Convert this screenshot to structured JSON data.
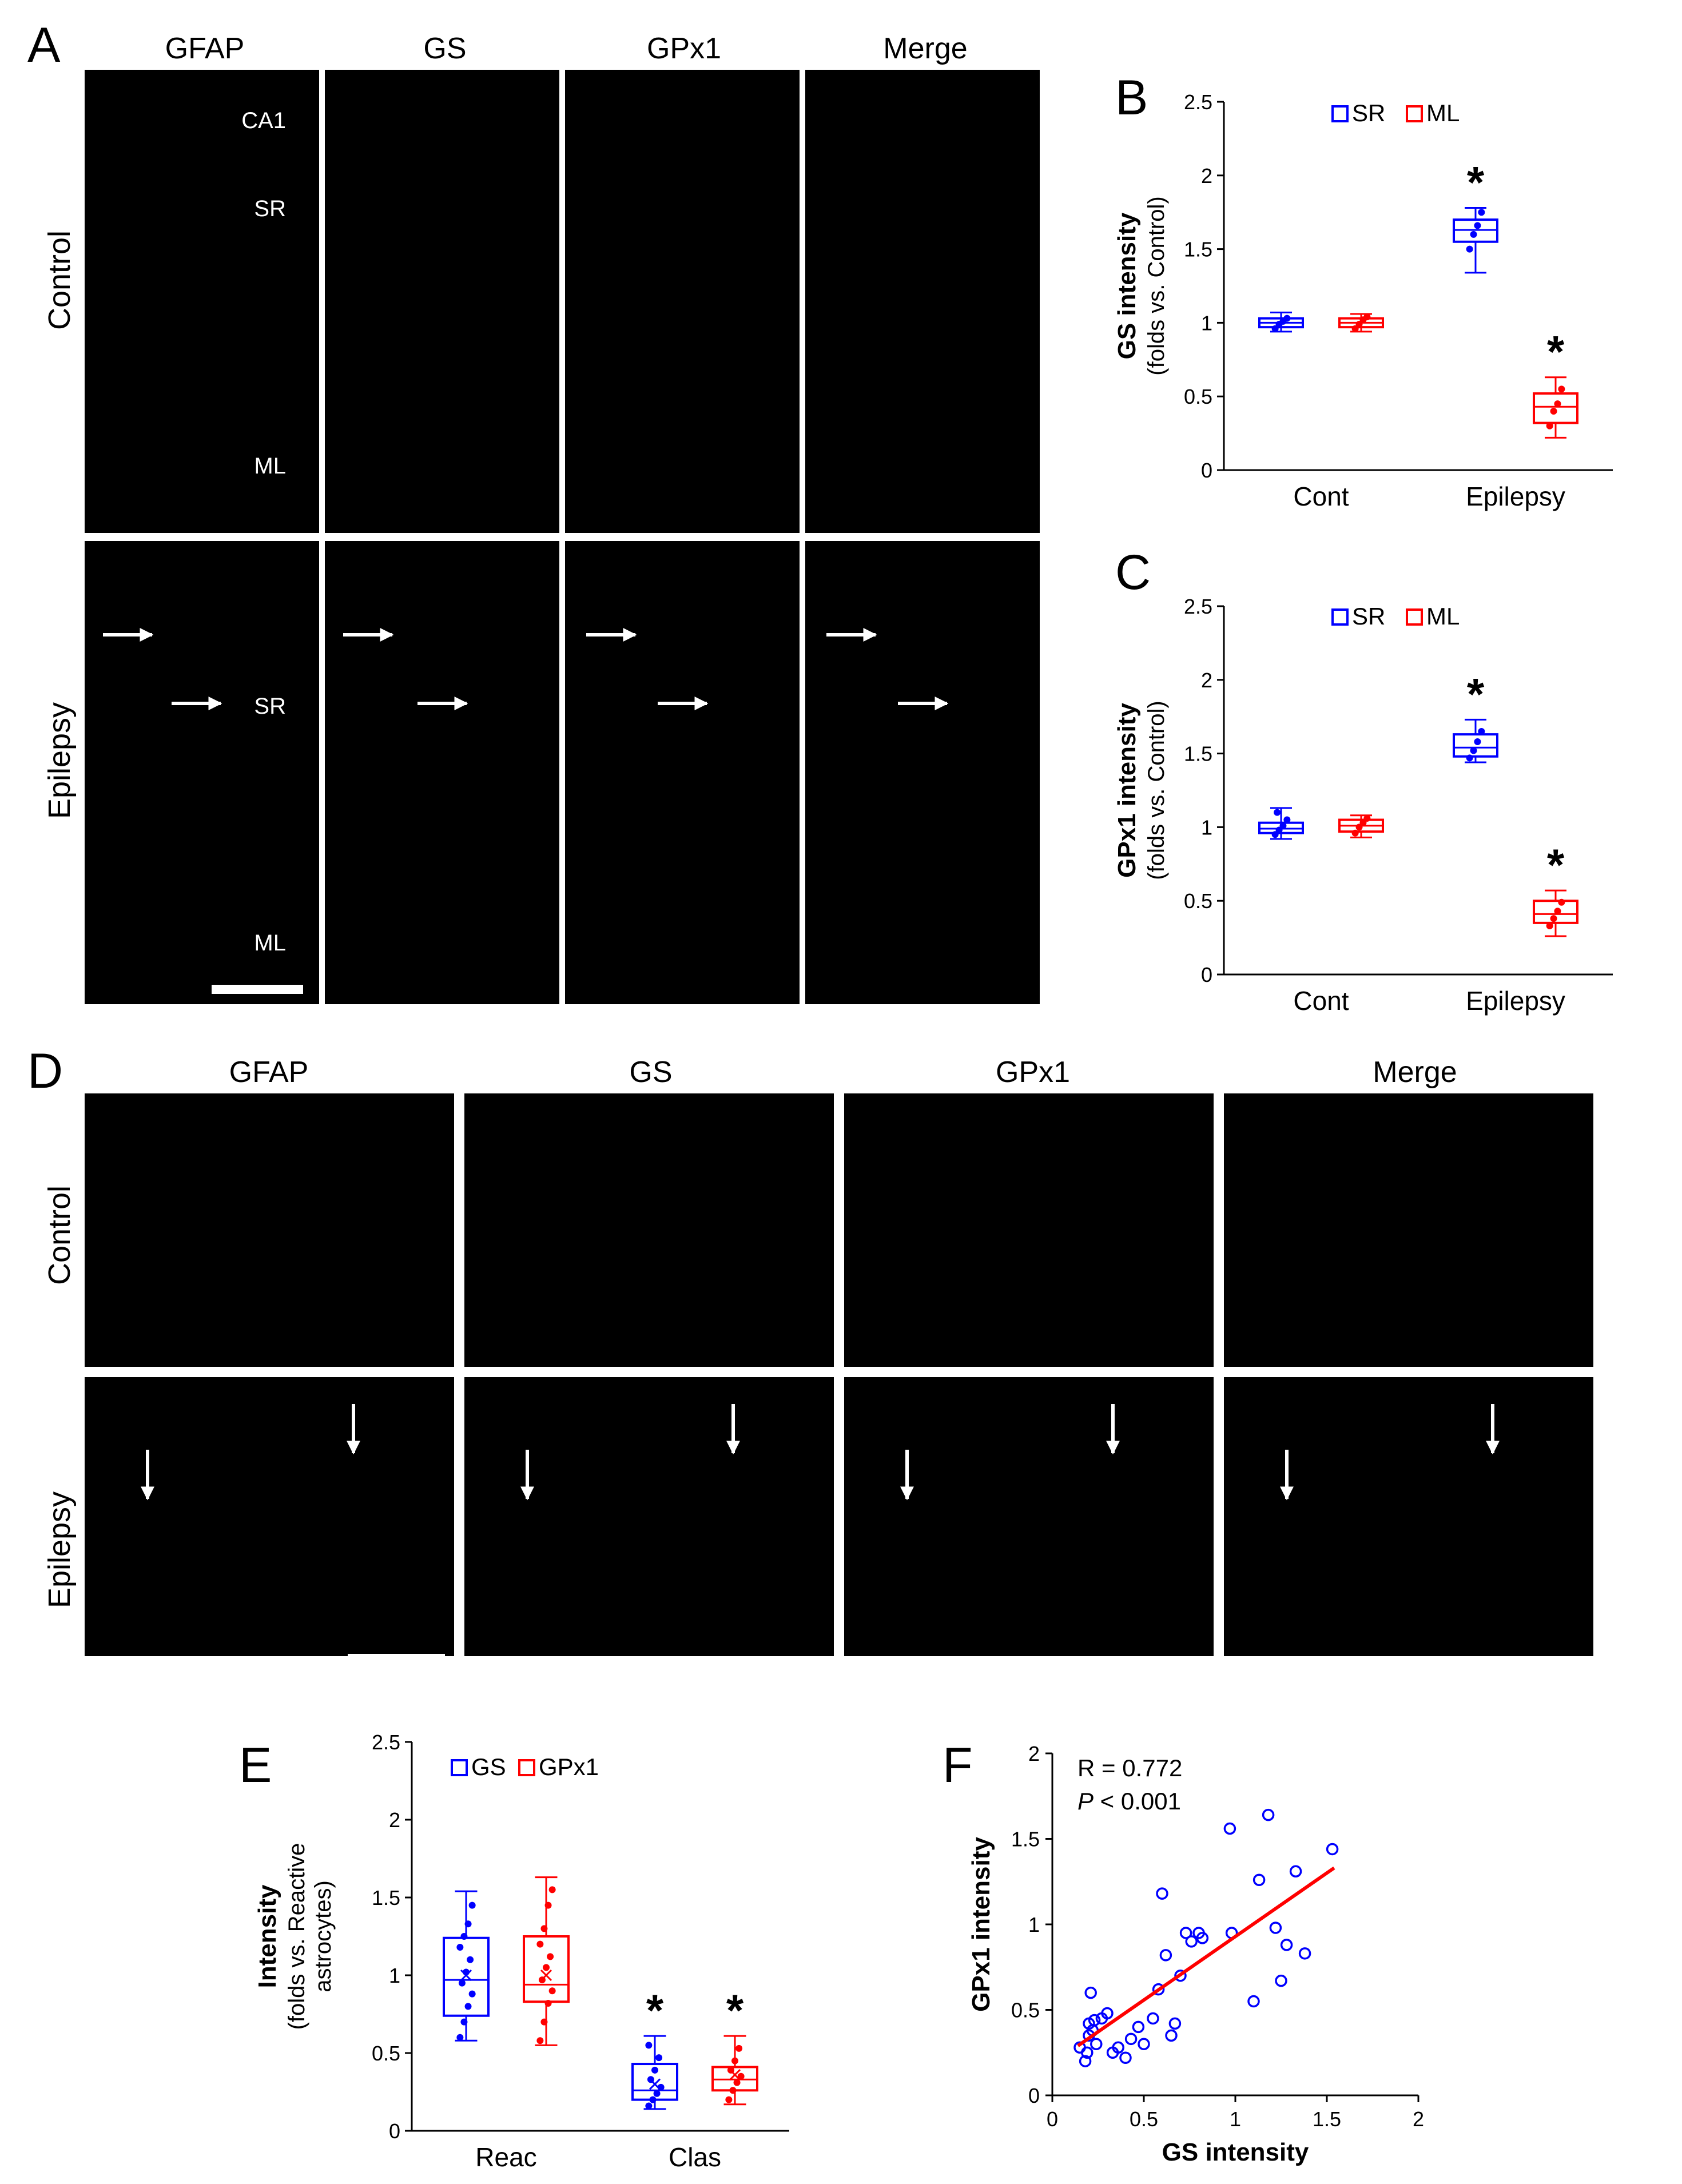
{
  "panels": {
    "A": {
      "letter": "A",
      "columns": [
        "GFAP",
        "GS",
        "GPx1",
        "Merge"
      ],
      "rows": [
        "Control",
        "Epilepsy"
      ],
      "control_labels": [
        "CA1",
        "SR",
        "ML"
      ],
      "epilepsy_labels": [
        "SR",
        "ML"
      ]
    },
    "D": {
      "letter": "D",
      "columns": [
        "GFAP",
        "GS",
        "GPx1",
        "Merge"
      ],
      "rows": [
        "Control",
        "Epilepsy"
      ]
    },
    "B": {
      "letter": "B"
    },
    "C": {
      "letter": "C"
    },
    "E": {
      "letter": "E"
    },
    "F": {
      "letter": "F"
    }
  },
  "colors": {
    "gfap": "#1a1aff",
    "gs": "#22cc22",
    "gpx1": "#ee1111",
    "merge": "#b8b8ff",
    "series_blue": "#0000ff",
    "series_red": "#ff0000"
  },
  "chart_data": [
    {
      "id": "B",
      "type": "box",
      "categories": [
        "Cont",
        "Epilepsy"
      ],
      "ylabel": "GS intensity",
      "ylabel_sub": "(folds vs. Control)",
      "ylim": [
        0,
        2.5
      ],
      "yticks": [
        "0",
        "0.5",
        "1",
        "1.5",
        "2",
        "2.5"
      ],
      "legend": [
        "SR",
        "ML"
      ],
      "series": [
        {
          "name": "SR",
          "boxes": [
            {
              "min": 0.94,
              "q1": 0.97,
              "median": 1.0,
              "q3": 1.03,
              "max": 1.07,
              "points": [
                0.96,
                0.99,
                1.01,
                1.03
              ]
            },
            {
              "min": 1.34,
              "q1": 1.55,
              "median": 1.63,
              "q3": 1.7,
              "max": 1.78,
              "points": [
                1.5,
                1.6,
                1.66,
                1.75
              ]
            }
          ]
        },
        {
          "name": "ML",
          "boxes": [
            {
              "min": 0.94,
              "q1": 0.97,
              "median": 1.0,
              "q3": 1.03,
              "max": 1.06,
              "points": [
                0.96,
                0.99,
                1.02,
                1.04
              ]
            },
            {
              "min": 0.22,
              "q1": 0.32,
              "median": 0.43,
              "q3": 0.52,
              "max": 0.63,
              "points": [
                0.3,
                0.4,
                0.45,
                0.55
              ]
            }
          ]
        }
      ],
      "significance": [
        "*",
        "*"
      ]
    },
    {
      "id": "C",
      "type": "box",
      "categories": [
        "Cont",
        "Epilepsy"
      ],
      "ylabel": "GPx1 intensity",
      "ylabel_sub": "(folds vs. Control)",
      "ylim": [
        0,
        2.5
      ],
      "yticks": [
        "0",
        "0.5",
        "1",
        "1.5",
        "2",
        "2.5"
      ],
      "legend": [
        "SR",
        "ML"
      ],
      "series": [
        {
          "name": "SR",
          "boxes": [
            {
              "min": 0.92,
              "q1": 0.96,
              "median": 0.99,
              "q3": 1.03,
              "max": 1.13,
              "points": [
                0.95,
                0.98,
                1.01,
                1.05,
                1.1
              ]
            },
            {
              "min": 1.44,
              "q1": 1.48,
              "median": 1.54,
              "q3": 1.63,
              "max": 1.73,
              "points": [
                1.47,
                1.52,
                1.58,
                1.65
              ]
            }
          ]
        },
        {
          "name": "ML",
          "boxes": [
            {
              "min": 0.93,
              "q1": 0.97,
              "median": 1.01,
              "q3": 1.05,
              "max": 1.08,
              "points": [
                0.96,
                1.0,
                1.03,
                1.06
              ]
            },
            {
              "min": 0.26,
              "q1": 0.35,
              "median": 0.41,
              "q3": 0.5,
              "max": 0.57,
              "points": [
                0.33,
                0.38,
                0.43,
                0.49
              ]
            }
          ]
        }
      ],
      "significance": [
        "*",
        "*"
      ]
    },
    {
      "id": "E",
      "type": "box",
      "categories": [
        "Reac",
        "Clas"
      ],
      "ylabel": "Intensity",
      "ylabel_sub": "(folds vs. Reactive",
      "ylabel_sub2": "astrocytes)",
      "ylim": [
        0,
        2.5
      ],
      "yticks": [
        "0",
        "0.5",
        "1",
        "1.5",
        "2",
        "2.5"
      ],
      "legend": [
        "GS",
        "GPx1"
      ],
      "series": [
        {
          "name": "GS",
          "boxes": [
            {
              "min": 0.58,
              "q1": 0.74,
              "median": 0.97,
              "q3": 1.24,
              "max": 1.54,
              "mean": 1.0,
              "points": [
                0.6,
                0.7,
                0.8,
                0.88,
                0.95,
                1.02,
                1.1,
                1.18,
                1.25,
                1.33,
                1.45
              ]
            },
            {
              "min": 0.14,
              "q1": 0.2,
              "median": 0.26,
              "q3": 0.43,
              "max": 0.61,
              "mean": 0.3,
              "points": [
                0.16,
                0.2,
                0.24,
                0.28,
                0.33,
                0.39,
                0.47,
                0.55
              ]
            }
          ]
        },
        {
          "name": "GPx1",
          "boxes": [
            {
              "min": 0.55,
              "q1": 0.83,
              "median": 0.94,
              "q3": 1.25,
              "max": 1.63,
              "mean": 1.0,
              "points": [
                0.58,
                0.7,
                0.82,
                0.9,
                0.97,
                1.05,
                1.12,
                1.2,
                1.3,
                1.45,
                1.55
              ]
            },
            {
              "min": 0.17,
              "q1": 0.26,
              "median": 0.33,
              "q3": 0.41,
              "max": 0.61,
              "mean": 0.36,
              "points": [
                0.2,
                0.26,
                0.31,
                0.35,
                0.39,
                0.45,
                0.53
              ]
            }
          ]
        }
      ],
      "significance": [
        "*",
        "*"
      ]
    },
    {
      "id": "F",
      "type": "scatter",
      "xlabel": "GS intensity",
      "ylabel": "GPx1 intensity",
      "xlim": [
        0,
        2
      ],
      "ylim": [
        0,
        2
      ],
      "xticks": [
        "0",
        "0.5",
        "1",
        "1.5",
        "2"
      ],
      "yticks": [
        "0",
        "0.5",
        "1",
        "1.5",
        "2"
      ],
      "annotation_r": "R = 0.772",
      "annotation_p_symbol": "P",
      "annotation_p_rest": " < 0.001",
      "fit": {
        "x": [
          0.14,
          1.54
        ],
        "y": [
          0.29,
          1.33
        ]
      },
      "points": [
        [
          0.15,
          0.28
        ],
        [
          0.18,
          0.2
        ],
        [
          0.19,
          0.25
        ],
        [
          0.2,
          0.35
        ],
        [
          0.2,
          0.42
        ],
        [
          0.21,
          0.6
        ],
        [
          0.22,
          0.38
        ],
        [
          0.23,
          0.44
        ],
        [
          0.24,
          0.3
        ],
        [
          0.27,
          0.45
        ],
        [
          0.3,
          0.48
        ],
        [
          0.33,
          0.25
        ],
        [
          0.36,
          0.28
        ],
        [
          0.4,
          0.22
        ],
        [
          0.43,
          0.33
        ],
        [
          0.47,
          0.4
        ],
        [
          0.5,
          0.3
        ],
        [
          0.55,
          0.45
        ],
        [
          0.58,
          0.62
        ],
        [
          0.6,
          1.18
        ],
        [
          0.62,
          0.82
        ],
        [
          0.65,
          0.35
        ],
        [
          0.67,
          0.42
        ],
        [
          0.7,
          0.7
        ],
        [
          0.73,
          0.95
        ],
        [
          0.76,
          0.9
        ],
        [
          0.8,
          0.95
        ],
        [
          0.82,
          0.92
        ],
        [
          0.97,
          1.56
        ],
        [
          0.98,
          0.95
        ],
        [
          1.1,
          0.55
        ],
        [
          1.13,
          1.26
        ],
        [
          1.18,
          1.64
        ],
        [
          1.22,
          0.98
        ],
        [
          1.25,
          0.67
        ],
        [
          1.28,
          0.88
        ],
        [
          1.33,
          1.31
        ],
        [
          1.38,
          0.83
        ],
        [
          1.53,
          1.44
        ]
      ]
    }
  ]
}
